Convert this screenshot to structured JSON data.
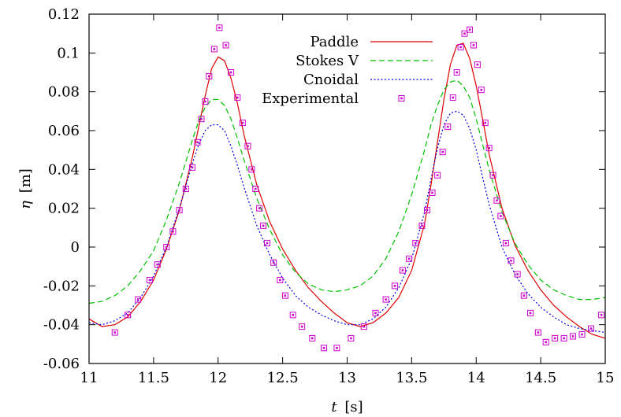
{
  "chart_data": {
    "type": "line",
    "title": "",
    "xlabel": {
      "var": "t",
      "unit": "[s]"
    },
    "ylabel": {
      "var": "η",
      "unit": "[m]"
    },
    "xlim": [
      11,
      15
    ],
    "ylim": [
      -0.06,
      0.12
    ],
    "xticks": [
      11,
      11.5,
      12,
      12.5,
      13,
      13.5,
      14,
      14.5,
      15
    ],
    "xtick_labels": [
      "11",
      "11.5",
      "12",
      "12.5",
      "13",
      "13.5",
      "14",
      "14.5",
      "15"
    ],
    "yticks": [
      -0.06,
      -0.04,
      -0.02,
      0,
      0.02,
      0.04,
      0.06,
      0.08,
      0.1,
      0.12
    ],
    "ytick_labels": [
      "-0.06",
      "-0.04",
      "-0.02",
      "0",
      "0.02",
      "0.04",
      "0.06",
      "0.08",
      "0.1",
      "0.12"
    ],
    "grid": false,
    "legend_position": "top-center",
    "series": [
      {
        "name": "Paddle",
        "style": "solid",
        "color": "#dd0000",
        "x": [
          11,
          11.1,
          11.2,
          11.3,
          11.4,
          11.5,
          11.6,
          11.7,
          11.8,
          11.85,
          11.9,
          11.95,
          12.0,
          12.05,
          12.1,
          12.15,
          12.2,
          12.3,
          12.4,
          12.5,
          12.6,
          12.7,
          12.8,
          12.9,
          13.0,
          13.1,
          13.2,
          13.3,
          13.4,
          13.5,
          13.6,
          13.65,
          13.7,
          13.75,
          13.8,
          13.85,
          13.9,
          13.95,
          14.0,
          14.05,
          14.1,
          14.2,
          14.3,
          14.4,
          14.5,
          14.6,
          14.7,
          14.8,
          14.9,
          15.0
        ],
        "y": [
          -0.037,
          -0.041,
          -0.04,
          -0.036,
          -0.028,
          -0.017,
          -0.001,
          0.019,
          0.046,
          0.062,
          0.078,
          0.092,
          0.098,
          0.096,
          0.087,
          0.074,
          0.058,
          0.032,
          0.013,
          -0.001,
          -0.012,
          -0.021,
          -0.028,
          -0.034,
          -0.039,
          -0.041,
          -0.039,
          -0.034,
          -0.026,
          -0.012,
          0.012,
          0.032,
          0.054,
          0.076,
          0.094,
          0.104,
          0.105,
          0.097,
          0.083,
          0.066,
          0.048,
          0.02,
          0.001,
          -0.012,
          -0.022,
          -0.03,
          -0.036,
          -0.041,
          -0.045,
          -0.047
        ]
      },
      {
        "name": "Stokes V",
        "style": "dashed",
        "color": "#00c000",
        "x": [
          11,
          11.1,
          11.2,
          11.3,
          11.4,
          11.5,
          11.6,
          11.7,
          11.8,
          11.85,
          11.9,
          11.95,
          12.0,
          12.05,
          12.1,
          12.15,
          12.2,
          12.3,
          12.4,
          12.5,
          12.6,
          12.7,
          12.8,
          12.9,
          13.0,
          13.1,
          13.2,
          13.3,
          13.4,
          13.5,
          13.6,
          13.65,
          13.7,
          13.75,
          13.8,
          13.85,
          13.9,
          13.95,
          14.0,
          14.05,
          14.1,
          14.2,
          14.3,
          14.4,
          14.5,
          14.6,
          14.7,
          14.8,
          14.9,
          15.0
        ],
        "y": [
          -0.029,
          -0.028,
          -0.025,
          -0.02,
          -0.012,
          -0.002,
          0.014,
          0.033,
          0.055,
          0.065,
          0.072,
          0.076,
          0.076,
          0.073,
          0.066,
          0.056,
          0.045,
          0.025,
          0.009,
          -0.004,
          -0.013,
          -0.019,
          -0.022,
          -0.023,
          -0.022,
          -0.02,
          -0.015,
          -0.006,
          0.008,
          0.027,
          0.05,
          0.063,
          0.073,
          0.081,
          0.085,
          0.086,
          0.083,
          0.077,
          0.066,
          0.053,
          0.04,
          0.018,
          0.002,
          -0.009,
          -0.017,
          -0.022,
          -0.025,
          -0.027,
          -0.027,
          -0.026
        ]
      },
      {
        "name": "Cnoidal",
        "style": "dotted",
        "color": "#0000dd",
        "x": [
          11,
          11.1,
          11.2,
          11.3,
          11.4,
          11.5,
          11.6,
          11.7,
          11.8,
          11.85,
          11.9,
          11.95,
          12.0,
          12.05,
          12.1,
          12.15,
          12.2,
          12.3,
          12.4,
          12.5,
          12.6,
          12.7,
          12.8,
          12.9,
          13.0,
          13.1,
          13.2,
          13.3,
          13.4,
          13.5,
          13.6,
          13.65,
          13.7,
          13.75,
          13.8,
          13.85,
          13.9,
          13.95,
          14.0,
          14.05,
          14.1,
          14.2,
          14.3,
          14.4,
          14.5,
          14.6,
          14.7,
          14.8,
          14.9,
          15.0
        ],
        "y": [
          -0.039,
          -0.04,
          -0.038,
          -0.034,
          -0.026,
          -0.015,
          0.0,
          0.02,
          0.043,
          0.053,
          0.06,
          0.063,
          0.063,
          0.06,
          0.052,
          0.042,
          0.031,
          0.011,
          -0.004,
          -0.016,
          -0.025,
          -0.031,
          -0.035,
          -0.038,
          -0.04,
          -0.04,
          -0.037,
          -0.031,
          -0.021,
          -0.006,
          0.018,
          0.035,
          0.051,
          0.063,
          0.069,
          0.07,
          0.068,
          0.061,
          0.05,
          0.036,
          0.022,
          0.0,
          -0.014,
          -0.024,
          -0.031,
          -0.036,
          -0.04,
          -0.042,
          -0.043,
          -0.044
        ]
      },
      {
        "name": "Experimental",
        "style": "markers",
        "marker": "boxed-square",
        "color": "#cc00cc",
        "x": [
          11.2,
          11.3,
          11.38,
          11.47,
          11.53,
          11.6,
          11.65,
          11.7,
          11.75,
          11.8,
          11.84,
          11.87,
          11.9,
          11.93,
          11.97,
          12.01,
          12.06,
          12.1,
          12.15,
          12.19,
          12.23,
          12.26,
          12.29,
          12.32,
          12.35,
          12.38,
          12.43,
          12.48,
          12.52,
          12.58,
          12.65,
          12.73,
          12.82,
          12.92,
          13.03,
          13.13,
          13.22,
          13.3,
          13.37,
          13.43,
          13.48,
          13.53,
          13.58,
          13.62,
          13.66,
          13.7,
          13.74,
          13.78,
          13.82,
          13.85,
          13.88,
          13.91,
          13.95,
          13.98,
          14.01,
          14.04,
          14.07,
          14.1,
          14.13,
          14.16,
          14.19,
          14.23,
          14.27,
          14.32,
          14.37,
          14.42,
          14.48,
          14.54,
          14.61,
          14.68,
          14.75,
          14.82,
          14.89,
          14.97
        ],
        "y": [
          -0.044,
          -0.035,
          -0.027,
          -0.017,
          -0.009,
          0.0,
          0.008,
          0.019,
          0.03,
          0.041,
          0.054,
          0.066,
          0.075,
          0.088,
          0.102,
          0.113,
          0.104,
          0.09,
          0.077,
          0.064,
          0.052,
          0.04,
          0.03,
          0.02,
          0.011,
          0.002,
          -0.008,
          -0.017,
          -0.025,
          -0.035,
          -0.041,
          -0.047,
          -0.052,
          -0.052,
          -0.047,
          -0.041,
          -0.034,
          -0.027,
          -0.02,
          -0.012,
          -0.006,
          0.002,
          0.011,
          0.019,
          0.028,
          0.037,
          0.049,
          0.062,
          0.077,
          0.09,
          0.103,
          0.11,
          0.112,
          0.104,
          0.094,
          0.081,
          0.064,
          0.051,
          0.037,
          0.024,
          0.016,
          0.002,
          -0.007,
          -0.014,
          -0.025,
          -0.034,
          -0.044,
          -0.049,
          -0.047,
          -0.047,
          -0.046,
          -0.045,
          -0.042,
          -0.035
        ]
      }
    ]
  }
}
